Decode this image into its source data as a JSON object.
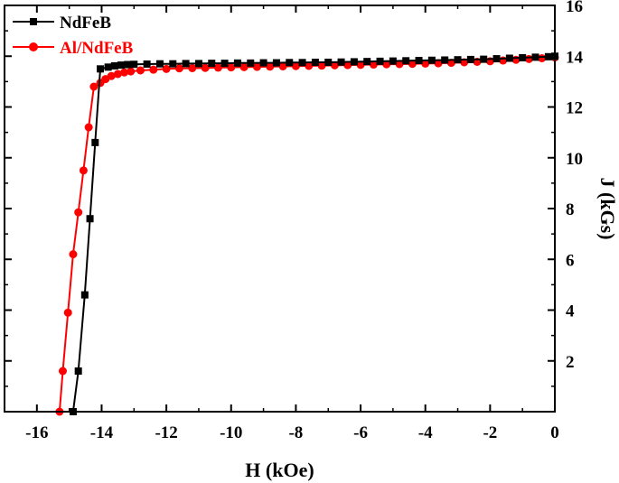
{
  "chart_data": {
    "type": "line",
    "title": "",
    "xlabel": "H (kOe)",
    "ylabel": "J (kGs)",
    "xlim": [
      -17,
      0
    ],
    "ylim": [
      0,
      16
    ],
    "x_ticks": [
      -16,
      -14,
      -12,
      -10,
      -8,
      -6,
      -4,
      -2,
      0
    ],
    "y_ticks": [
      2,
      4,
      6,
      8,
      10,
      12,
      14,
      16
    ],
    "x_tick_labels": [
      "-16",
      "-14",
      "-12",
      "-10",
      "-8",
      "-6",
      "-4",
      "-2",
      "0"
    ],
    "y_tick_labels": [
      "2",
      "4",
      "6",
      "8",
      "10",
      "12",
      "14",
      "16"
    ],
    "y_axis_side": "right",
    "grid": false,
    "legend_position": "top-left",
    "series": [
      {
        "name": "NdFeB",
        "color": "#000000",
        "marker": "square",
        "x": [
          -14.88,
          -14.72,
          -14.52,
          -14.36,
          -14.2,
          -14.04,
          -13.8,
          -13.6,
          -13.4,
          -13.2,
          -13.0,
          -12.6,
          -12.2,
          -11.8,
          -11.4,
          -11.0,
          -10.6,
          -10.2,
          -9.8,
          -9.4,
          -9.0,
          -8.6,
          -8.2,
          -7.8,
          -7.4,
          -7.0,
          -6.6,
          -6.2,
          -5.8,
          -5.4,
          -5.0,
          -4.6,
          -4.2,
          -3.8,
          -3.4,
          -3.0,
          -2.6,
          -2.2,
          -1.8,
          -1.4,
          -1.0,
          -0.6,
          -0.2,
          0.0
        ],
        "y": [
          0.0,
          1.6,
          4.6,
          7.6,
          10.6,
          13.5,
          13.57,
          13.62,
          13.65,
          13.67,
          13.68,
          13.69,
          13.7,
          13.7,
          13.71,
          13.71,
          13.72,
          13.72,
          13.73,
          13.73,
          13.74,
          13.74,
          13.75,
          13.75,
          13.76,
          13.76,
          13.77,
          13.78,
          13.79,
          13.8,
          13.81,
          13.82,
          13.83,
          13.84,
          13.85,
          13.86,
          13.87,
          13.88,
          13.9,
          13.92,
          13.94,
          13.96,
          13.98,
          14.0
        ]
      },
      {
        "name": "Al/NdFeB",
        "color": "#ff0000",
        "marker": "circle",
        "x": [
          -15.3,
          -15.2,
          -15.04,
          -14.88,
          -14.72,
          -14.56,
          -14.4,
          -14.24,
          -14.04,
          -13.88,
          -13.7,
          -13.5,
          -13.3,
          -13.1,
          -12.8,
          -12.4,
          -12.0,
          -11.6,
          -11.2,
          -10.8,
          -10.4,
          -10.0,
          -9.6,
          -9.2,
          -8.8,
          -8.4,
          -8.0,
          -7.6,
          -7.2,
          -6.8,
          -6.4,
          -6.0,
          -5.6,
          -5.2,
          -4.8,
          -4.4,
          -4.0,
          -3.6,
          -3.2,
          -2.8,
          -2.4,
          -2.0,
          -1.6,
          -1.2,
          -0.8,
          -0.4,
          0.0
        ],
        "y": [
          0.0,
          1.6,
          3.9,
          6.2,
          7.85,
          9.5,
          11.2,
          12.8,
          12.95,
          13.1,
          13.22,
          13.3,
          13.36,
          13.4,
          13.44,
          13.47,
          13.5,
          13.52,
          13.53,
          13.54,
          13.55,
          13.56,
          13.57,
          13.58,
          13.59,
          13.6,
          13.61,
          13.62,
          13.63,
          13.64,
          13.65,
          13.66,
          13.67,
          13.68,
          13.69,
          13.7,
          13.71,
          13.72,
          13.74,
          13.76,
          13.78,
          13.8,
          13.83,
          13.86,
          13.89,
          13.92,
          13.95
        ]
      }
    ]
  }
}
